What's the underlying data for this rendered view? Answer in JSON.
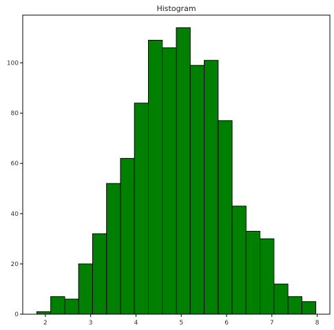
{
  "chart_data": {
    "type": "bar",
    "title": "Histogram",
    "xlabel": "",
    "ylabel": "",
    "bin_edges": [
      1.81,
      2.118,
      2.426,
      2.734,
      3.042,
      3.35,
      3.658,
      3.966,
      4.274,
      4.582,
      4.89,
      5.198,
      5.506,
      5.814,
      6.122,
      6.43,
      6.738,
      7.046,
      7.354,
      7.662,
      7.97
    ],
    "values": [
      1,
      7,
      6,
      20,
      32,
      52,
      62,
      84,
      109,
      106,
      114,
      99,
      101,
      77,
      43,
      33,
      30,
      12,
      7,
      5
    ],
    "xlim": [
      1.5,
      8.28
    ],
    "ylim": [
      0,
      119
    ],
    "xticks": [
      2,
      3,
      4,
      5,
      6,
      7,
      8
    ],
    "yticks": [
      0,
      20,
      40,
      60,
      80,
      100
    ],
    "bar_color": "#008000",
    "edge_color": "#000000",
    "grid": false
  }
}
